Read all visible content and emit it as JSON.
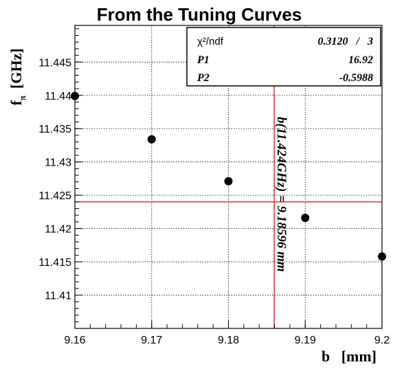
{
  "chart_data": {
    "type": "scatter",
    "title": "From the Tuning Curves",
    "xlabel": "b   [mm]",
    "ylabel_main": "f",
    "ylabel_sub": "π",
    "ylabel_unit": "[GHz]",
    "xlim": [
      9.16,
      9.2
    ],
    "ylim": [
      11.405,
      11.4505
    ],
    "xticks": [
      9.16,
      9.17,
      9.18,
      9.19,
      9.2
    ],
    "xtick_labels": [
      "9.16",
      "9.17",
      "9.18",
      "9.19",
      "9.2"
    ],
    "yticks": [
      11.41,
      11.415,
      11.42,
      11.425,
      11.43,
      11.435,
      11.44,
      11.445
    ],
    "ytick_labels": [
      "11.41",
      "11.415",
      "11.42",
      "11.425",
      "11.43",
      "11.435",
      "11.44",
      "11.445"
    ],
    "grid": true,
    "points": [
      {
        "x": 9.16,
        "y": 11.4399
      },
      {
        "x": 9.17,
        "y": 11.4334
      },
      {
        "x": 9.18,
        "y": 11.4271
      },
      {
        "x": 9.19,
        "y": 11.4216
      },
      {
        "x": 9.2,
        "y": 11.4158
      }
    ],
    "fit": {
      "p1": 16.92,
      "p2": -0.5988
    },
    "reference": {
      "x": 9.18596,
      "y": 11.424
    },
    "annotation": "b(11.424GHz) = 9.18596 mm",
    "stats": {
      "chi2_label": "χ²/ndf",
      "chi2_value": "0.3120   /   3",
      "p1_label": "P1",
      "p1_value": "16.92",
      "p2_label": "P2",
      "p2_value": "-0.5988"
    }
  }
}
